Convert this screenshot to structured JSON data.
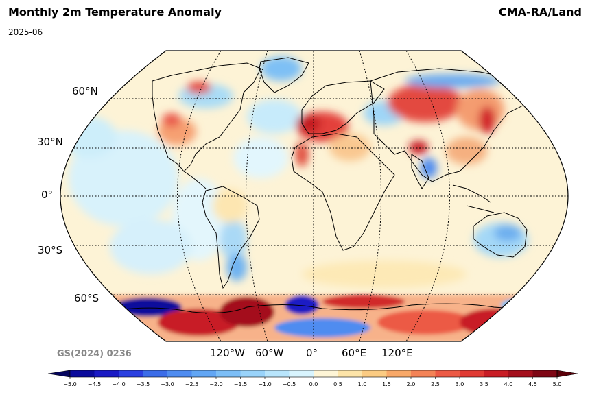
{
  "header": {
    "title": "Monthly 2m Temperature Anomaly",
    "date": "2025-06",
    "source": "CMA-RA/Land"
  },
  "map": {
    "projection": "Robinson",
    "lat_labels": [
      "60°N",
      "30°N",
      "0°",
      "30°S",
      "60°S"
    ],
    "lon_labels": [
      "120°W",
      "60°W",
      "0°",
      "60°E",
      "120°E"
    ],
    "review_number": "GS(2024) 0236"
  },
  "colorbar": {
    "ticks": [
      "−5.0",
      "−4.5",
      "−4.0",
      "−3.5",
      "−3.0",
      "−2.5",
      "−2.0",
      "−1.5",
      "−1.0",
      "−0.5",
      "0.0",
      "0.5",
      "1.0",
      "1.5",
      "2.0",
      "2.5",
      "3.0",
      "3.5",
      "4.0",
      "4.5",
      "5.0"
    ],
    "colors": [
      "#0b0b9c",
      "#1a1ac4",
      "#2a3fe0",
      "#3b6ce8",
      "#4f8cf0",
      "#62a6f4",
      "#7cbef7",
      "#99d3fa",
      "#b8e5fc",
      "#d8f4fe",
      "#fef5d6",
      "#fde4a8",
      "#fbcb82",
      "#f8a868",
      "#f38357",
      "#ec5a45",
      "#e03a33",
      "#c81d25",
      "#a40f1c",
      "#7e0614"
    ],
    "extend_low": "#05055e",
    "extend_high": "#5a0009"
  }
}
